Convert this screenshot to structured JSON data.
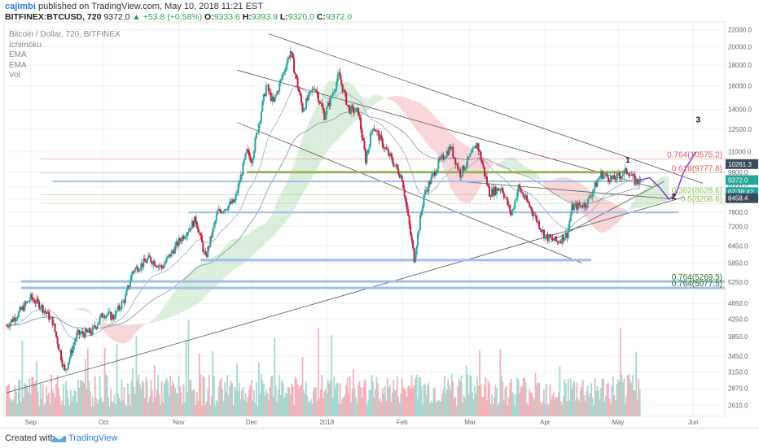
{
  "header": {
    "author": "cajimbi",
    "published_text": "published on TradingView.com, May 10, 2018 11:21 EST",
    "symbol": "BITFINEX:BTCUSD, 720",
    "last": "9372.0",
    "change_arrow": "▲",
    "change": "+53.8 (+0.58%)",
    "o_label": "O:",
    "o_value": "9333.6",
    "h_label": "H:",
    "h_value": "9393.9",
    "l_label": "L:",
    "l_value": "9320.0",
    "c_label": "C:",
    "c_value": "9372.0"
  },
  "legend": [
    "Bitcoin / Dollar, 720, BITFINEX",
    "Ichimoku",
    "EMA",
    "EMA",
    "Vol"
  ],
  "footer": {
    "created_with": "Created with",
    "brand": "TradingView"
  },
  "colors": {
    "up": "#26a69a",
    "down": "#c0203d",
    "cloud_green": "#cfe8cf",
    "cloud_red": "#f6c8cc",
    "channel": "#555555",
    "projection": "#7b2fd0",
    "fib_red": "#e05a5a",
    "fib_green": "#8fbf5a",
    "support_blue": "#9fbfe8"
  },
  "chart_data": {
    "type": "line",
    "title": "Bitcoin / Dollar, 720, BITFINEX",
    "y_axis": {
      "scale": "log",
      "ticks": [
        2610,
        2870,
        3150,
        3450,
        3850,
        4250,
        4650,
        5250,
        5850,
        6450,
        7200,
        7800,
        8400,
        9000,
        9800,
        11000,
        12500,
        14000,
        16000,
        18000,
        20000,
        22000
      ],
      "tick_labels": [
        "2610.0",
        "2870.0",
        "3150.0",
        "3450.0",
        "3850.0",
        "4250.0",
        "4650.0",
        "5250.0",
        "5850.0",
        "6450.0",
        "7200.0",
        "7800.0",
        "8400.0",
        "9000.0",
        "9800.0",
        "11000.0",
        "12500.0",
        "14000.0",
        "16000.0",
        "18000.0",
        "20000.0",
        "22000.0"
      ],
      "range": [
        2450,
        23000
      ]
    },
    "x_axis": {
      "tick_labels": [
        "Sep",
        "Oct",
        "Nov",
        "Dec",
        "2018",
        "Feb",
        "Mar",
        "Apr",
        "May",
        "Jun"
      ],
      "tick_dates": [
        "2017-09-01",
        "2017-10-01",
        "2017-11-01",
        "2017-12-01",
        "2018-01-01",
        "2018-02-01",
        "2018-03-01",
        "2018-04-01",
        "2018-05-01",
        "2018-06-01"
      ],
      "range": [
        "2017-08-21",
        "2018-06-14"
      ]
    },
    "price_path": [
      [
        "2017-08-22",
        4100
      ],
      [
        "2017-08-27",
        4400
      ],
      [
        "2017-09-01",
        4800
      ],
      [
        "2017-09-05",
        4600
      ],
      [
        "2017-09-10",
        4200
      ],
      [
        "2017-09-15",
        3150
      ],
      [
        "2017-09-20",
        3900
      ],
      [
        "2017-09-26",
        3950
      ],
      [
        "2017-10-01",
        4400
      ],
      [
        "2017-10-05",
        4300
      ],
      [
        "2017-10-10",
        4800
      ],
      [
        "2017-10-13",
        5600
      ],
      [
        "2017-10-20",
        6000
      ],
      [
        "2017-10-25",
        5700
      ],
      [
        "2017-11-01",
        6600
      ],
      [
        "2017-11-08",
        7500
      ],
      [
        "2017-11-12",
        6000
      ],
      [
        "2017-11-17",
        7800
      ],
      [
        "2017-11-24",
        8300
      ],
      [
        "2017-11-29",
        11000
      ],
      [
        "2017-12-01",
        10500
      ],
      [
        "2017-12-07",
        16000
      ],
      [
        "2017-12-10",
        14500
      ],
      [
        "2017-12-17",
        19500
      ],
      [
        "2017-12-22",
        14000
      ],
      [
        "2017-12-27",
        16000
      ],
      [
        "2017-12-31",
        13500
      ],
      [
        "2018-01-06",
        17000
      ],
      [
        "2018-01-10",
        14000
      ],
      [
        "2018-01-14",
        13800
      ],
      [
        "2018-01-17",
        10500
      ],
      [
        "2018-01-20",
        12800
      ],
      [
        "2018-01-25",
        11200
      ],
      [
        "2018-02-01",
        9500
      ],
      [
        "2018-02-06",
        6000
      ],
      [
        "2018-02-10",
        8600
      ],
      [
        "2018-02-16",
        10300
      ],
      [
        "2018-02-21",
        11300
      ],
      [
        "2018-02-25",
        9700
      ],
      [
        "2018-03-04",
        11500
      ],
      [
        "2018-03-09",
        8700
      ],
      [
        "2018-03-14",
        9000
      ],
      [
        "2018-03-18",
        7700
      ],
      [
        "2018-03-21",
        9000
      ],
      [
        "2018-03-26",
        8000
      ],
      [
        "2018-04-01",
        6800
      ],
      [
        "2018-04-06",
        6600
      ],
      [
        "2018-04-10",
        6900
      ],
      [
        "2018-04-12",
        8000
      ],
      [
        "2018-04-18",
        8200
      ],
      [
        "2018-04-24",
        9700
      ],
      [
        "2018-04-29",
        9400
      ],
      [
        "2018-05-05",
        9900
      ],
      [
        "2018-05-08",
        9300
      ],
      [
        "2018-05-10",
        9372
      ]
    ],
    "projection_path": [
      [
        "2018-05-10",
        9372
      ],
      [
        "2018-05-14",
        9500
      ],
      [
        "2018-05-18",
        9000
      ],
      [
        "2018-05-22",
        8400
      ],
      [
        "2018-05-25",
        8700
      ],
      [
        "2018-05-28",
        9800
      ],
      [
        "2018-06-02",
        11000
      ]
    ],
    "wave_labels": [
      {
        "text": "1",
        "date": "2018-05-05",
        "price": 10350
      },
      {
        "text": "2",
        "date": "2018-05-24",
        "price": 8400
      },
      {
        "text": "3",
        "date": "2018-06-03",
        "price": 13000
      }
    ],
    "fibonacci": [
      {
        "label": "0.764(10575.2)",
        "price": 10575.2,
        "color": "red"
      },
      {
        "label": "0.618(9777.8)",
        "price": 9777.8,
        "color": "red"
      },
      {
        "label": "0.382(8628.6)",
        "price": 8628.6,
        "color": "green"
      },
      {
        "label": "0.5(8208.8)",
        "price": 8208.8,
        "color": "green"
      },
      {
        "label": "0.764(5269.5)",
        "price": 5269.5,
        "color": "darkgreen"
      },
      {
        "label": "0.764(5077.5)",
        "price": 5077.5,
        "color": "darkgreen"
      }
    ],
    "price_tags": [
      {
        "label": "10261.3",
        "price": 10261.3,
        "style": "dark"
      },
      {
        "label": "9372.0",
        "price": 9372.0,
        "style": "green"
      },
      {
        "label": "07:38:42",
        "price": 9000,
        "style": "green"
      },
      {
        "label": "8458.4",
        "price": 8458.4,
        "style": "dark"
      }
    ]
  }
}
